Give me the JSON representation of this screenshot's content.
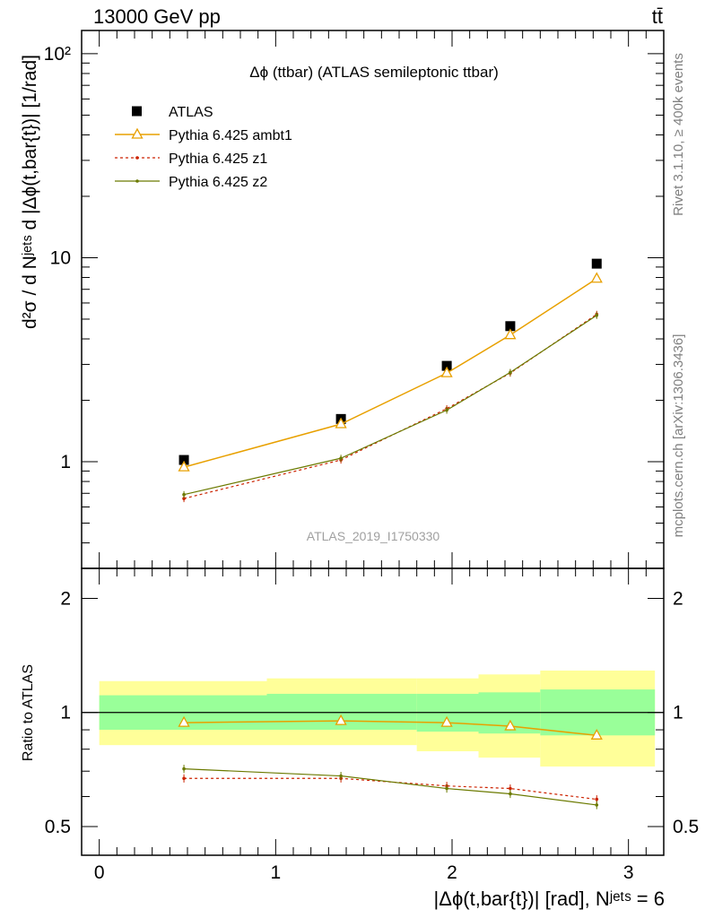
{
  "header": {
    "energy_label": "13000 GeV pp",
    "process_label": "tt̄"
  },
  "side_labels": {
    "rivet": "Rivet 3.1.10, ≥ 400k events",
    "mcplots": "mcplots.cern.ch [arXiv:1306.3436]"
  },
  "chart_data": [
    {
      "type": "line",
      "title": "Δϕ (ttbar) (ATLAS semileptonic ttbar)",
      "ylabel": "d²σ / d Nʲᵉᵗˢ d |Δϕ(t,bar{t})| [1/rad]",
      "xlabel": "",
      "watermark": "ATLAS_2019_I1750330",
      "yscale": "log",
      "xlim": [
        -0.1,
        3.2
      ],
      "ylim": [
        0.3,
        130
      ],
      "ytick_labels": [
        "1",
        "10",
        "10²"
      ],
      "legend_position": "top-left",
      "x": [
        0.48,
        1.37,
        1.97,
        2.33,
        2.82
      ],
      "series": [
        {
          "name": "ATLAS",
          "marker": "square",
          "color": "#000000",
          "values": [
            1.02,
            1.62,
            2.95,
            4.62,
            9.35
          ]
        },
        {
          "name": "Pythia 6.425 ambt1",
          "marker": "triangle",
          "color": "#e8a000",
          "values": [
            0.94,
            1.53,
            2.72,
            4.18,
            7.9
          ]
        },
        {
          "name": "Pythia 6.425 z1",
          "marker": "dot",
          "color": "#cc2200",
          "dashed": true,
          "values": [
            0.66,
            1.02,
            1.82,
            2.72,
            5.28
          ]
        },
        {
          "name": "Pythia 6.425 z2",
          "marker": "dot",
          "color": "#6b7a00",
          "values": [
            0.69,
            1.04,
            1.79,
            2.74,
            5.22
          ]
        }
      ]
    },
    {
      "type": "line",
      "ylabel": "Ratio to ATLAS",
      "xlabel": "|Δϕ(t,bar{t})| [rad], Nʲᵉᵗˢ = 6",
      "yscale": "log",
      "xlim": [
        -0.1,
        3.2
      ],
      "ylim": [
        0.42,
        2.4
      ],
      "ytick_labels": [
        "0.5",
        "1",
        "2"
      ],
      "xtick_labels": [
        "0",
        "1",
        "2",
        "3"
      ],
      "x": [
        0.48,
        1.37,
        1.97,
        2.33,
        2.82
      ],
      "bins": [
        [
          0.0,
          0.95
        ],
        [
          0.95,
          1.8
        ],
        [
          1.8,
          2.15
        ],
        [
          2.15,
          2.5
        ],
        [
          2.5,
          3.15
        ]
      ],
      "band_inner": [
        [
          0.9,
          1.11
        ],
        [
          0.9,
          1.12
        ],
        [
          0.89,
          1.12
        ],
        [
          0.88,
          1.13
        ],
        [
          0.87,
          1.15
        ]
      ],
      "band_outer": [
        [
          0.82,
          1.21
        ],
        [
          0.82,
          1.23
        ],
        [
          0.79,
          1.23
        ],
        [
          0.76,
          1.26
        ],
        [
          0.72,
          1.29
        ]
      ],
      "series": [
        {
          "name": "Pythia 6.425 ambt1",
          "color": "#e8a000",
          "values": [
            0.94,
            0.95,
            0.94,
            0.92,
            0.87
          ]
        },
        {
          "name": "Pythia 6.425 z1",
          "color": "#cc2200",
          "dashed": true,
          "values": [
            0.67,
            0.67,
            0.64,
            0.63,
            0.59
          ]
        },
        {
          "name": "Pythia 6.425 z2",
          "color": "#6b7a00",
          "values": [
            0.71,
            0.68,
            0.63,
            0.61,
            0.57
          ]
        }
      ]
    }
  ]
}
